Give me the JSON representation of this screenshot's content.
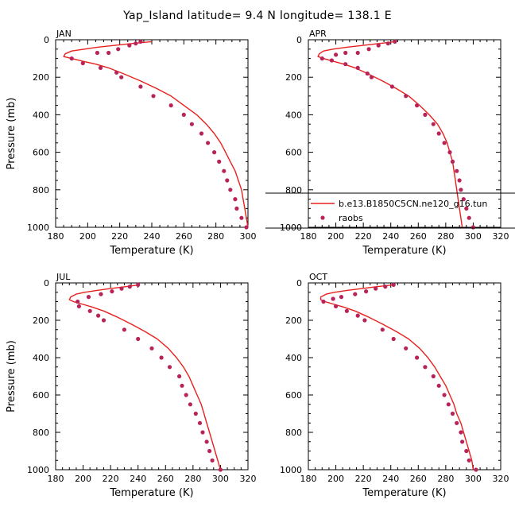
{
  "figure": {
    "title": "Yap_Island  latitude= 9.4 N longitude= 138.1 E"
  },
  "colors": {
    "model_line": "#e8211d",
    "obs_marker": "#b8245a",
    "axis": "#000000"
  },
  "chart_data": [
    {
      "type": "line",
      "panel_label": "JAN",
      "xlabel": "Temperature (K)",
      "ylabel": "Pressure (mb)",
      "xlim": [
        180,
        300
      ],
      "ylim": [
        1000,
        0
      ],
      "x_ticks": [
        180,
        200,
        220,
        240,
        260,
        280,
        300
      ],
      "y_ticks": [
        0,
        200,
        400,
        600,
        800,
        1000
      ],
      "show_legend": false,
      "series": [
        {
          "name": "b.e13.B1850C5CN.ne120_g16.tun",
          "kind": "line",
          "points": [
            [
              240,
              10
            ],
            [
              228,
              20
            ],
            [
              217,
              30
            ],
            [
              206,
              40
            ],
            [
              198,
              50
            ],
            [
              190,
              60
            ],
            [
              186,
              75
            ],
            [
              185,
              90
            ],
            [
              190,
              100
            ],
            [
              197,
              115
            ],
            [
              205,
              130
            ],
            [
              213,
              150
            ],
            [
              222,
              180
            ],
            [
              233,
              220
            ],
            [
              243,
              260
            ],
            [
              252,
              300
            ],
            [
              260,
              350
            ],
            [
              268,
              400
            ],
            [
              274,
              450
            ],
            [
              279,
              500
            ],
            [
              283,
              550
            ],
            [
              286,
              600
            ],
            [
              289,
              650
            ],
            [
              292,
              700
            ],
            [
              294,
              750
            ],
            [
              296,
              800
            ],
            [
              297,
              850
            ],
            [
              298,
              900
            ],
            [
              299,
              950
            ],
            [
              300,
              1000
            ]
          ]
        },
        {
          "name": "raobs",
          "kind": "markers",
          "points": [
            [
              233,
              10
            ],
            [
              230,
              20
            ],
            [
              226,
              30
            ],
            [
              219,
              50
            ],
            [
              213,
              70
            ],
            [
              190,
              100
            ],
            [
              206,
              70
            ],
            [
              197,
              125
            ],
            [
              208,
              150
            ],
            [
              218,
              175
            ],
            [
              221,
              200
            ],
            [
              233,
              250
            ],
            [
              241,
              300
            ],
            [
              252,
              350
            ],
            [
              260,
              400
            ],
            [
              265,
              450
            ],
            [
              271,
              500
            ],
            [
              275,
              550
            ],
            [
              279,
              600
            ],
            [
              282,
              650
            ],
            [
              285,
              700
            ],
            [
              287,
              750
            ],
            [
              289,
              800
            ],
            [
              292,
              850
            ],
            [
              293,
              900
            ],
            [
              296,
              950
            ],
            [
              299,
              1000
            ]
          ]
        }
      ]
    },
    {
      "type": "line",
      "panel_label": "APR",
      "xlabel": "Temperature (K)",
      "ylabel": "",
      "xlim": [
        180,
        320
      ],
      "ylim": [
        1000,
        0
      ],
      "x_ticks": [
        180,
        200,
        220,
        240,
        260,
        280,
        300,
        320
      ],
      "y_ticks": [
        0,
        200,
        400,
        600,
        800,
        1000
      ],
      "show_legend": true,
      "legend": {
        "placement": "bottom-right",
        "line_label": "b.e13.B1850C5CN.ne120_g16.tun",
        "marker_label": "raobs"
      },
      "series": [
        {
          "name": "b.e13.B1850C5CN.ne120_g16.tun",
          "kind": "line",
          "points": [
            [
              243,
              10
            ],
            [
              232,
              20
            ],
            [
              220,
              30
            ],
            [
              208,
              40
            ],
            [
              198,
              50
            ],
            [
              191,
              60
            ],
            [
              188,
              75
            ],
            [
              187,
              90
            ],
            [
              191,
              100
            ],
            [
              198,
              115
            ],
            [
              206,
              130
            ],
            [
              214,
              150
            ],
            [
              223,
              180
            ],
            [
              234,
              220
            ],
            [
              244,
              260
            ],
            [
              253,
              300
            ],
            [
              261,
              350
            ],
            [
              268,
              400
            ],
            [
              274,
              450
            ],
            [
              278,
              500
            ],
            [
              281,
              550
            ],
            [
              283,
              600
            ],
            [
              285,
              650
            ],
            [
              286,
              700
            ],
            [
              287,
              750
            ],
            [
              288,
              800
            ],
            [
              289,
              850
            ],
            [
              290,
              900
            ],
            [
              291,
              950
            ],
            [
              292,
              1000
            ]
          ]
        },
        {
          "name": "raobs",
          "kind": "markers",
          "points": [
            [
              243,
              10
            ],
            [
              238,
              20
            ],
            [
              231,
              30
            ],
            [
              224,
              50
            ],
            [
              216,
              70
            ],
            [
              200,
              80
            ],
            [
              190,
              100
            ],
            [
              207,
              70
            ],
            [
              197,
              110
            ],
            [
              207,
              130
            ],
            [
              216,
              150
            ],
            [
              223,
              180
            ],
            [
              226,
              200
            ],
            [
              241,
              250
            ],
            [
              251,
              300
            ],
            [
              259,
              350
            ],
            [
              265,
              400
            ],
            [
              271,
              450
            ],
            [
              275,
              500
            ],
            [
              279,
              550
            ],
            [
              283,
              600
            ],
            [
              285,
              650
            ],
            [
              288,
              700
            ],
            [
              290,
              750
            ],
            [
              291,
              800
            ],
            [
              293,
              850
            ],
            [
              295,
              900
            ],
            [
              297,
              950
            ],
            [
              300,
              1000
            ]
          ]
        }
      ]
    },
    {
      "type": "line",
      "panel_label": "JUL",
      "xlabel": "Temperature (K)",
      "ylabel": "Pressure (mb)",
      "xlim": [
        180,
        320
      ],
      "ylim": [
        1000,
        0
      ],
      "x_ticks": [
        180,
        200,
        220,
        240,
        260,
        280,
        300,
        320
      ],
      "y_ticks": [
        0,
        200,
        400,
        600,
        800,
        1000
      ],
      "show_legend": false,
      "series": [
        {
          "name": "b.e13.B1850C5CN.ne120_g16.tun",
          "kind": "line",
          "points": [
            [
              241,
              10
            ],
            [
              231,
              20
            ],
            [
              220,
              30
            ],
            [
              210,
              40
            ],
            [
              201,
              50
            ],
            [
              195,
              60
            ],
            [
              191,
              75
            ],
            [
              190,
              90
            ],
            [
              193,
              100
            ],
            [
              200,
              115
            ],
            [
              207,
              130
            ],
            [
              215,
              150
            ],
            [
              224,
              180
            ],
            [
              235,
              220
            ],
            [
              245,
              260
            ],
            [
              254,
              300
            ],
            [
              262,
              350
            ],
            [
              268,
              400
            ],
            [
              273,
              450
            ],
            [
              277,
              500
            ],
            [
              280,
              550
            ],
            [
              283,
              600
            ],
            [
              286,
              650
            ],
            [
              288,
              700
            ],
            [
              290,
              750
            ],
            [
              292,
              800
            ],
            [
              294,
              850
            ],
            [
              296,
              900
            ],
            [
              298,
              950
            ],
            [
              300,
              1000
            ]
          ]
        },
        {
          "name": "raobs",
          "kind": "markers",
          "points": [
            [
              240,
              10
            ],
            [
              234,
              20
            ],
            [
              228,
              30
            ],
            [
              221,
              45
            ],
            [
              213,
              60
            ],
            [
              204,
              75
            ],
            [
              196,
              100
            ],
            [
              197,
              125
            ],
            [
              205,
              150
            ],
            [
              211,
              175
            ],
            [
              215,
              200
            ],
            [
              230,
              250
            ],
            [
              240,
              300
            ],
            [
              250,
              350
            ],
            [
              257,
              400
            ],
            [
              263,
              450
            ],
            [
              270,
              500
            ],
            [
              272,
              550
            ],
            [
              275,
              600
            ],
            [
              278,
              650
            ],
            [
              282,
              700
            ],
            [
              285,
              750
            ],
            [
              287,
              800
            ],
            [
              290,
              850
            ],
            [
              292,
              900
            ],
            [
              294,
              950
            ],
            [
              300,
              1000
            ]
          ]
        }
      ]
    },
    {
      "type": "line",
      "panel_label": "OCT",
      "xlabel": "Temperature (K)",
      "ylabel": "",
      "xlim": [
        180,
        320
      ],
      "ylim": [
        1000,
        0
      ],
      "x_ticks": [
        180,
        200,
        220,
        240,
        260,
        280,
        300,
        320
      ],
      "y_ticks": [
        0,
        200,
        400,
        600,
        800,
        1000
      ],
      "show_legend": false,
      "series": [
        {
          "name": "b.e13.B1850C5CN.ne120_g16.tun",
          "kind": "line",
          "points": [
            [
              242,
              10
            ],
            [
              230,
              20
            ],
            [
              219,
              30
            ],
            [
              208,
              40
            ],
            [
              199,
              50
            ],
            [
              193,
              60
            ],
            [
              189,
              75
            ],
            [
              189,
              90
            ],
            [
              192,
              100
            ],
            [
              199,
              115
            ],
            [
              206,
              130
            ],
            [
              214,
              150
            ],
            [
              223,
              180
            ],
            [
              234,
              220
            ],
            [
              244,
              260
            ],
            [
              253,
              300
            ],
            [
              261,
              350
            ],
            [
              267,
              400
            ],
            [
              272,
              450
            ],
            [
              276,
              500
            ],
            [
              280,
              550
            ],
            [
              283,
              600
            ],
            [
              286,
              650
            ],
            [
              288,
              700
            ],
            [
              291,
              750
            ],
            [
              293,
              800
            ],
            [
              295,
              850
            ],
            [
              297,
              900
            ],
            [
              299,
              950
            ],
            [
              300,
              1000
            ]
          ]
        },
        {
          "name": "raobs",
          "kind": "markers",
          "points": [
            [
              242,
              10
            ],
            [
              236,
              20
            ],
            [
              229,
              30
            ],
            [
              222,
              45
            ],
            [
              214,
              60
            ],
            [
              204,
              75
            ],
            [
              191,
              100
            ],
            [
              198,
              85
            ],
            [
              200,
              125
            ],
            [
              208,
              150
            ],
            [
              216,
              175
            ],
            [
              221,
              200
            ],
            [
              234,
              250
            ],
            [
              242,
              300
            ],
            [
              251,
              350
            ],
            [
              259,
              400
            ],
            [
              265,
              450
            ],
            [
              271,
              500
            ],
            [
              275,
              550
            ],
            [
              279,
              600
            ],
            [
              282,
              650
            ],
            [
              285,
              700
            ],
            [
              288,
              750
            ],
            [
              291,
              800
            ],
            [
              292,
              850
            ],
            [
              295,
              900
            ],
            [
              297,
              950
            ],
            [
              302,
              1000
            ]
          ]
        }
      ]
    }
  ]
}
